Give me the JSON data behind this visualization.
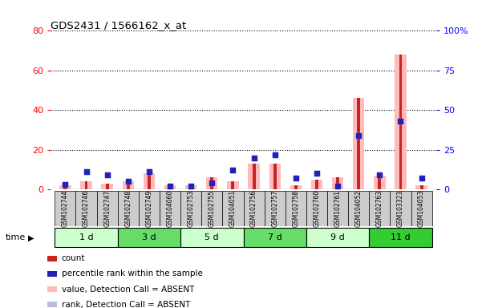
{
  "title": "GDS2431 / 1566162_x_at",
  "samples": [
    "GSM102744",
    "GSM102746",
    "GSM102747",
    "GSM102748",
    "GSM102749",
    "GSM104060",
    "GSM102753",
    "GSM102755",
    "GSM104051",
    "GSM102756",
    "GSM102757",
    "GSM102758",
    "GSM102760",
    "GSM102761",
    "GSM104052",
    "GSM102763",
    "GSM103323",
    "GSM104053"
  ],
  "time_groups": [
    {
      "label": "1 d",
      "start": 0,
      "end": 3,
      "color": "#ccffcc"
    },
    {
      "label": "3 d",
      "start": 3,
      "end": 6,
      "color": "#66dd66"
    },
    {
      "label": "5 d",
      "start": 6,
      "end": 9,
      "color": "#ccffcc"
    },
    {
      "label": "7 d",
      "start": 9,
      "end": 12,
      "color": "#66dd66"
    },
    {
      "label": "9 d",
      "start": 12,
      "end": 15,
      "color": "#ccffcc"
    },
    {
      "label": "11 d",
      "start": 15,
      "end": 18,
      "color": "#33cc33"
    }
  ],
  "count_values": [
    2,
    4,
    3,
    4,
    8,
    2,
    2,
    6,
    4,
    13,
    13,
    2,
    5,
    6,
    46,
    7,
    68,
    2
  ],
  "percentile_values": [
    3,
    11,
    9,
    5,
    11,
    2,
    2,
    4,
    12,
    20,
    22,
    7,
    10,
    2,
    34,
    9,
    43,
    7
  ],
  "absent_value_bars": [
    2,
    4,
    3,
    4,
    8,
    2,
    2,
    6,
    4,
    13,
    13,
    2,
    5,
    6,
    46,
    7,
    68,
    2
  ],
  "absent_rank_dots": [
    3,
    11,
    9,
    5,
    11,
    2,
    2,
    4,
    12,
    20,
    22,
    7,
    10,
    2,
    34,
    9,
    43,
    7
  ],
  "ylim_left": [
    0,
    80
  ],
  "ylim_right": [
    0,
    100
  ],
  "yticks_left": [
    0,
    20,
    40,
    60,
    80
  ],
  "yticks_right": [
    0,
    25,
    50,
    75,
    100
  ],
  "ytick_labels_right": [
    "0",
    "25",
    "50",
    "75",
    "100%"
  ],
  "bar_color_count": "#cc2222",
  "dot_color_percentile": "#2222bb",
  "bar_color_absent": "#ffbbbb",
  "dot_color_absent_rank": "#bbbbdd",
  "legend_items": [
    {
      "color": "#cc2222",
      "label": "count"
    },
    {
      "color": "#2222bb",
      "label": "percentile rank within the sample"
    },
    {
      "color": "#ffbbbb",
      "label": "value, Detection Call = ABSENT"
    },
    {
      "color": "#bbbbdd",
      "label": "rank, Detection Call = ABSENT"
    }
  ]
}
